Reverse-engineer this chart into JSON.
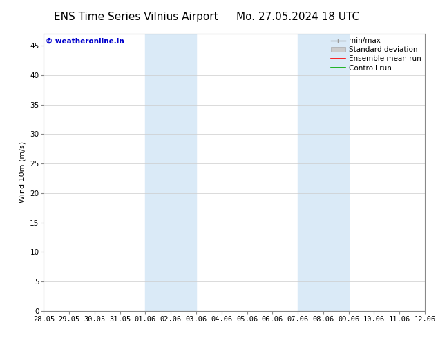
{
  "title_left": "ENS Time Series Vilnius Airport",
  "title_right": "Mo. 27.05.2024 18 UTC",
  "ylabel": "Wind 10m (m/s)",
  "xlabel_ticks": [
    "28.05",
    "29.05",
    "30.05",
    "31.05",
    "01.06",
    "02.06",
    "03.06",
    "04.06",
    "05.06",
    "06.06",
    "07.06",
    "08.06",
    "09.06",
    "10.06",
    "11.06",
    "12.06"
  ],
  "yticks": [
    0,
    5,
    10,
    15,
    20,
    25,
    30,
    35,
    40,
    45
  ],
  "ylim": [
    0,
    47
  ],
  "xlim_start": 0,
  "xlim_end": 15,
  "shaded_regions": [
    {
      "x_start": 4,
      "x_end": 6,
      "color": "#daeaf7"
    },
    {
      "x_start": 10,
      "x_end": 12,
      "color": "#daeaf7"
    }
  ],
  "legend_items": [
    {
      "label": "min/max",
      "color": "#999999",
      "lw": 1.2,
      "style": "solid"
    },
    {
      "label": "Standard deviation",
      "color": "#cccccc",
      "lw": 6,
      "style": "solid"
    },
    {
      "label": "Ensemble mean run",
      "color": "#ff0000",
      "lw": 1.2,
      "style": "solid"
    },
    {
      "label": "Controll run",
      "color": "#00aa00",
      "lw": 1.2,
      "style": "solid"
    }
  ],
  "watermark_text": "© weatheronline.in",
  "watermark_color": "#0000cc",
  "background_color": "#ffffff",
  "plot_bg_color": "#ffffff",
  "grid_color": "#cccccc",
  "title_fontsize": 11,
  "axis_fontsize": 8,
  "tick_fontsize": 7.5,
  "legend_fontsize": 7.5
}
